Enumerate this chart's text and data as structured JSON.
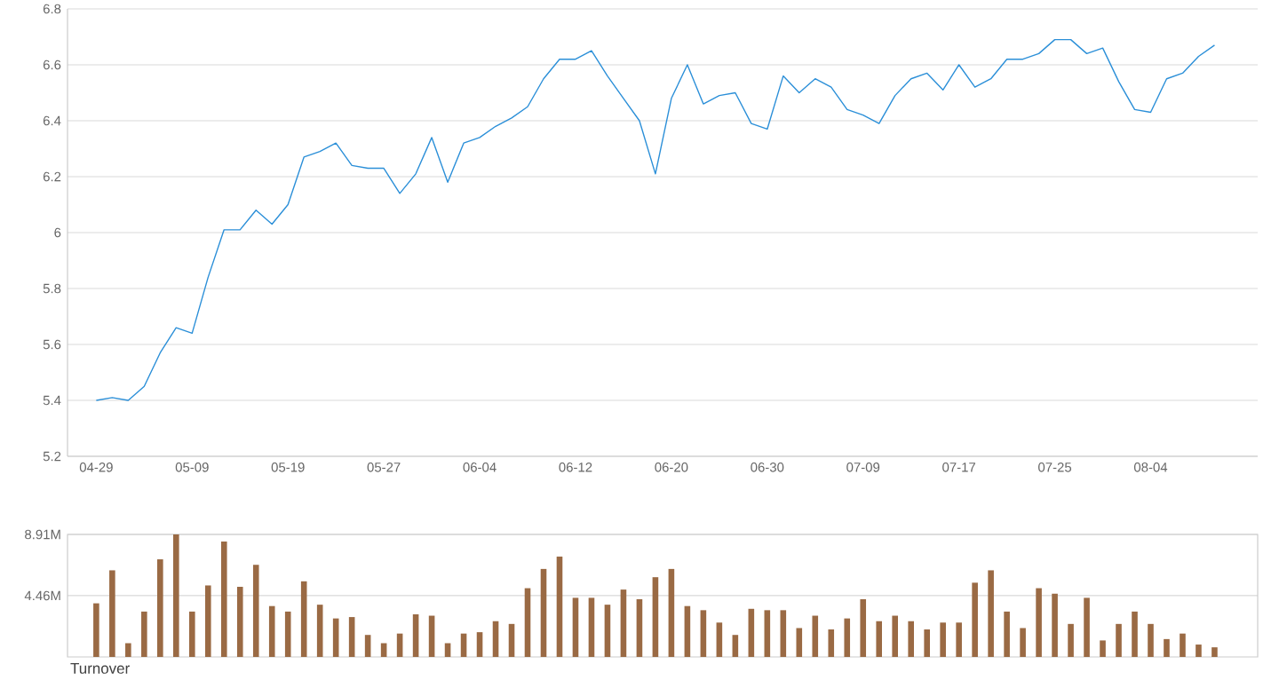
{
  "chart_data": [
    {
      "type": "line",
      "categories": [
        "04-29",
        null,
        null,
        null,
        null,
        null,
        "05-09",
        null,
        null,
        null,
        null,
        null,
        "05-19",
        null,
        null,
        null,
        null,
        null,
        "05-27",
        null,
        null,
        null,
        null,
        null,
        "06-04",
        null,
        null,
        null,
        null,
        null,
        "06-12",
        null,
        null,
        null,
        null,
        null,
        "06-20",
        null,
        null,
        null,
        null,
        null,
        "06-30",
        null,
        null,
        null,
        null,
        null,
        "07-09",
        null,
        null,
        null,
        null,
        null,
        "07-17",
        null,
        null,
        null,
        null,
        null,
        "07-25",
        null,
        null,
        null,
        null,
        null,
        "08-04",
        null,
        null,
        null,
        null
      ],
      "series": [
        {
          "color": "#2b8fd8",
          "values": [
            5.4,
            5.41,
            5.4,
            5.45,
            5.57,
            5.66,
            5.64,
            5.84,
            6.01,
            6.01,
            6.08,
            6.03,
            6.1,
            6.27,
            6.29,
            6.32,
            6.24,
            6.23,
            6.23,
            6.14,
            6.21,
            6.34,
            6.18,
            6.32,
            6.34,
            6.38,
            6.41,
            6.45,
            6.55,
            6.62,
            6.62,
            6.65,
            6.56,
            6.48,
            6.4,
            6.21,
            6.48,
            6.6,
            6.46,
            6.49,
            6.5,
            6.39,
            6.37,
            6.56,
            6.5,
            6.55,
            6.52,
            6.44,
            6.42,
            6.39,
            6.49,
            6.55,
            6.57,
            6.51,
            6.6,
            6.52,
            6.55,
            6.62,
            6.62,
            6.64,
            6.69,
            6.69,
            6.64,
            6.66,
            6.54,
            6.44,
            6.43,
            6.55,
            6.57,
            6.63,
            6.67
          ]
        }
      ],
      "ylim": [
        5.2,
        6.8
      ],
      "yticks": [
        5.2,
        5.4,
        5.6,
        5.8,
        6,
        6.2,
        6.4,
        6.6,
        6.8
      ],
      "grid": "y"
    },
    {
      "type": "bar",
      "title": "Turnover",
      "tick_labels": "y",
      "categories": [
        null,
        null,
        null,
        null,
        null,
        null,
        null,
        null,
        null,
        null,
        null,
        null,
        null,
        null,
        null,
        null,
        null,
        null,
        null,
        null,
        null,
        null,
        null,
        null,
        null,
        null,
        null,
        null,
        null,
        null,
        null,
        null,
        null,
        null,
        null,
        null,
        null,
        null,
        null,
        null,
        null,
        null,
        null,
        null,
        null,
        null,
        null,
        null,
        null,
        null,
        null,
        null,
        null,
        null,
        null,
        null,
        null,
        null,
        null,
        null,
        null,
        null,
        null,
        null,
        null,
        null,
        null,
        null,
        null,
        null,
        null
      ],
      "series": [
        {
          "color": "#9a6a44",
          "values": [
            3900000,
            6300000,
            1000000,
            3300000,
            7100000,
            8910000,
            3300000,
            5200000,
            8400000,
            5100000,
            6700000,
            3700000,
            3300000,
            5500000,
            3800000,
            2800000,
            2900000,
            1600000,
            1000000,
            1700000,
            3100000,
            3000000,
            1000000,
            1700000,
            1800000,
            2600000,
            2400000,
            5000000,
            6400000,
            7300000,
            4300000,
            4300000,
            3800000,
            4900000,
            4200000,
            5800000,
            6400000,
            3700000,
            3400000,
            2500000,
            1600000,
            3500000,
            3400000,
            3400000,
            2100000,
            3000000,
            2000000,
            2800000,
            4200000,
            2600000,
            3000000,
            2600000,
            2000000,
            2500000,
            2500000,
            5400000,
            6300000,
            3300000,
            2100000,
            5000000,
            4600000,
            2400000,
            4300000,
            1200000,
            2400000,
            3300000,
            2400000,
            1300000,
            1700000,
            900000,
            700000
          ]
        }
      ],
      "ylim": [
        0,
        8910000
      ],
      "yticks": [
        {
          "value": 4460000,
          "label": "4.46M"
        },
        {
          "value": 8910000,
          "label": "8.91M"
        }
      ],
      "grid": "y"
    }
  ]
}
